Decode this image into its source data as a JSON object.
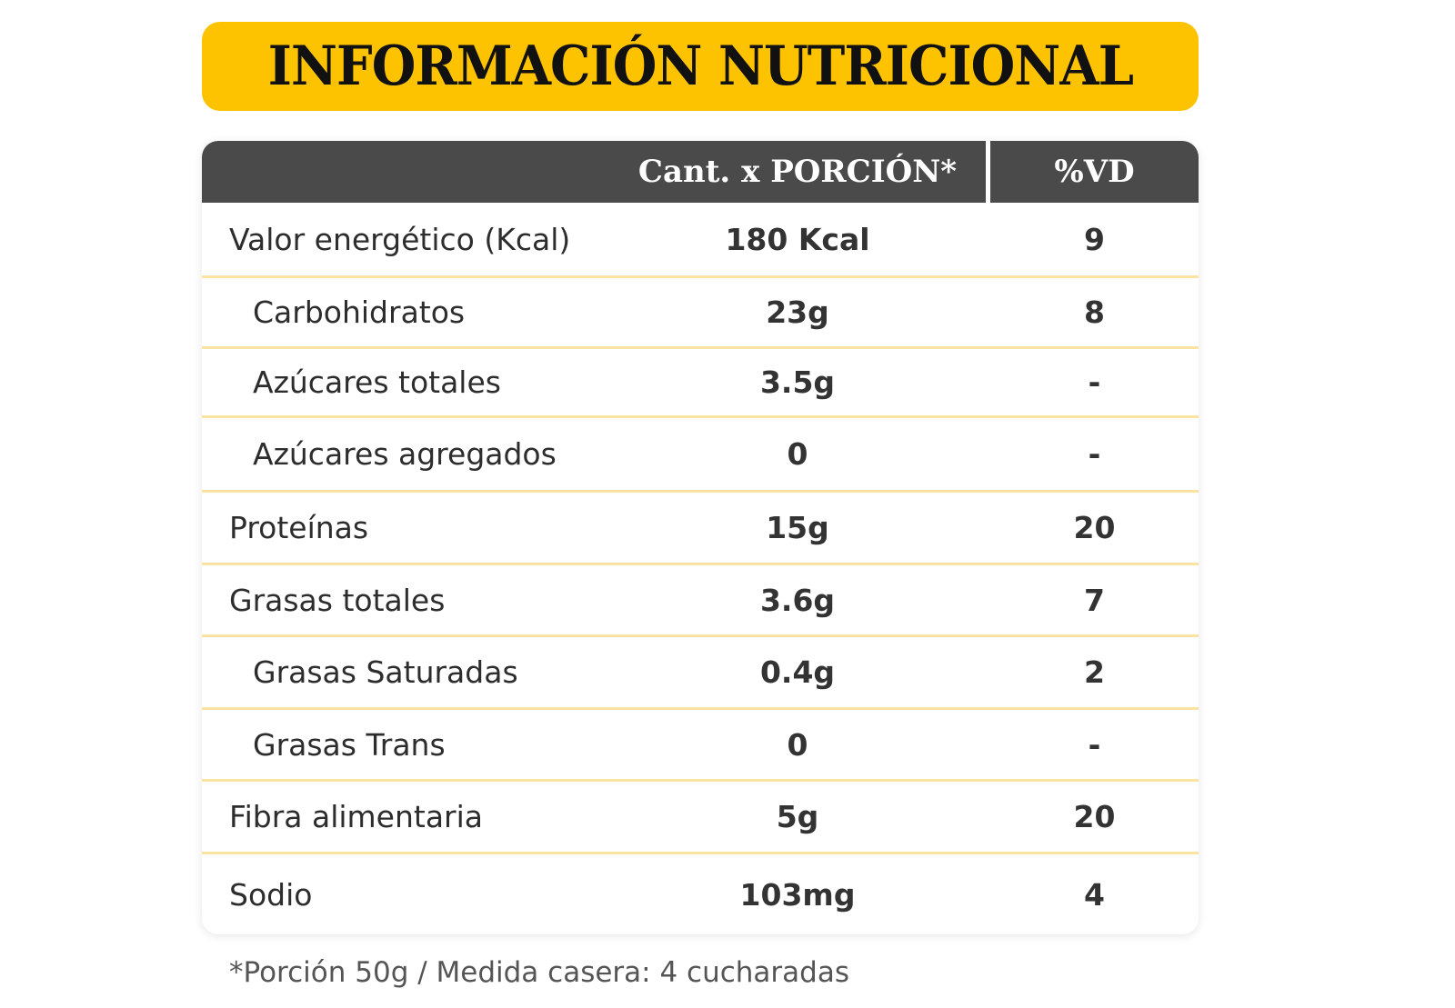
{
  "title": "INFORMACIÓN NUTRICIONAL",
  "table": {
    "headers": {
      "name": "",
      "amount": "Cant. x PORCIÓN*",
      "vd": "%VD"
    },
    "rows": [
      {
        "name": "Valor energético (Kcal)",
        "amount": "180 Kcal",
        "vd": "9",
        "indent": false
      },
      {
        "name": "Carbohidratos",
        "amount": "23g",
        "vd": "8",
        "indent": true
      },
      {
        "name": "Azúcares totales",
        "amount": "3.5g",
        "vd": "-",
        "indent": true
      },
      {
        "name": "Azúcares agregados",
        "amount": "0",
        "vd": "-",
        "indent": true
      },
      {
        "name": "Proteínas",
        "amount": "15g",
        "vd": "20",
        "indent": false
      },
      {
        "name": "Grasas totales",
        "amount": "3.6g",
        "vd": "7",
        "indent": false
      },
      {
        "name": "Grasas Saturadas",
        "amount": "0.4g",
        "vd": "2",
        "indent": true
      },
      {
        "name": "Grasas Trans",
        "amount": "0",
        "vd": "-",
        "indent": true
      },
      {
        "name": "Fibra alimentaria",
        "amount": "5g",
        "vd": "20",
        "indent": false
      },
      {
        "name": "Sodio",
        "amount": "103mg",
        "vd": "4",
        "indent": false
      }
    ]
  },
  "footnote": "*Porción 50g / Medida casera: 4 cucharadas",
  "colors": {
    "title_banner": "#fdc200",
    "header_background": "#4a4a4a",
    "row_divider": "#fbe3a2"
  }
}
